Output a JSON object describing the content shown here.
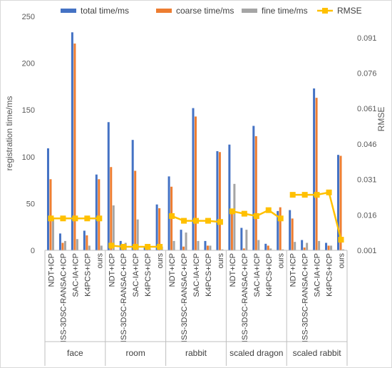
{
  "chart_data": {
    "type": "bar",
    "title": "",
    "ylabel": "registration time/ms",
    "y2label": "RMSE",
    "ylim": [
      0,
      250
    ],
    "yticks": [
      0,
      50,
      100,
      150,
      200,
      250
    ],
    "y2lim": [
      0.001,
      0.1
    ],
    "y2ticks": [
      "0.001",
      "0.016",
      "0.031",
      "0.046",
      "0.061",
      "0.076",
      "0.091"
    ],
    "legend_position": "top",
    "groups": [
      {
        "name": "face",
        "categories": [
          "NDT+ICP",
          "ISS-3DSC-RANSAC+ICP",
          "SAC-IA+ICP",
          "K4PCS+ICP",
          "ours"
        ]
      },
      {
        "name": "room",
        "categories": [
          "NDT+ICP",
          "ISS-3DSC-RANSAC+ICP",
          "SAC-IA+ICP",
          "K4PCS+ICP",
          "ours"
        ]
      },
      {
        "name": "rabbit",
        "categories": [
          "NDT+ICP",
          "ISS-3DSC-RANSAC+ICP",
          "SAC-IA+ICP",
          "K4PCS+ICP",
          "ours"
        ]
      },
      {
        "name": "scaled dragon",
        "categories": [
          "NDT+ICP",
          "ISS-3DSC-RANSAC+ICP",
          "SAC-IA+ICP",
          "K4PCS+ICP",
          "ours"
        ]
      },
      {
        "name": "scaled rabbit",
        "categories": [
          "NDT+ICP",
          "ISS-3DSC-RANSAC+ICP",
          "SAC-IA+ICP",
          "K4PCS+ICP",
          "ours"
        ]
      }
    ],
    "series": [
      {
        "name": "total time/ms",
        "type": "bar",
        "axis": "left",
        "color": "#4472C4",
        "values": [
          109,
          18,
          233,
          21,
          81,
          137,
          10,
          118,
          3,
          49,
          79,
          22,
          152,
          10,
          106,
          113,
          24,
          133,
          7,
          42,
          43,
          11,
          173,
          8,
          102
        ]
      },
      {
        "name": "coarse time/ms",
        "type": "bar",
        "axis": "left",
        "color": "#ED7D31",
        "values": [
          76,
          8,
          221,
          16,
          76,
          89,
          2,
          85,
          1,
          45,
          68,
          4,
          143,
          5,
          105,
          39,
          2,
          122,
          5,
          46,
          34,
          3,
          163,
          5,
          101
        ]
      },
      {
        "name": "fine time/ms",
        "type": "bar",
        "axis": "left",
        "color": "#A5A5A5",
        "values": [
          34,
          10,
          12,
          5,
          5,
          48,
          8,
          33,
          2,
          4,
          10,
          19,
          10,
          5,
          1,
          71,
          22,
          11,
          2,
          1,
          9,
          8,
          10,
          5,
          1
        ]
      },
      {
        "name": "RMSE",
        "type": "line",
        "axis": "right",
        "color": "#FFC000",
        "values": [
          0.0145,
          0.0145,
          0.0145,
          0.0145,
          0.0145,
          0.003,
          0.0025,
          0.0025,
          0.0025,
          0.0025,
          0.0155,
          0.0135,
          0.0135,
          0.0135,
          0.013,
          0.0175,
          0.0165,
          0.0155,
          0.018,
          0.0145,
          0.0245,
          0.0245,
          0.0245,
          0.0255,
          0.0055
        ]
      }
    ]
  }
}
